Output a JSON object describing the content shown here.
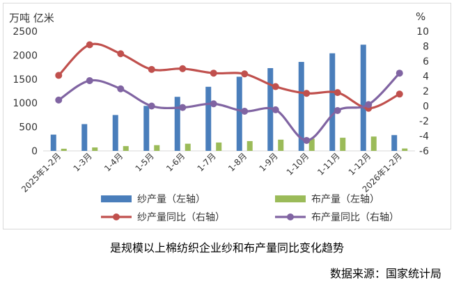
{
  "chart_data": {
    "type": "bar",
    "categories": [
      "2025年1-2月",
      "1-3月",
      "1-4月",
      "1-5月",
      "1-6月",
      "1-7月",
      "1-8月",
      "1-9月",
      "1-10月",
      "1-11月",
      "1-12月",
      "2026年1-2月"
    ],
    "left_axis": {
      "unit": "万吨 亿米",
      "ylim": [
        0,
        2500
      ],
      "ticks": [
        0,
        500,
        1000,
        1500,
        2000,
        2500
      ]
    },
    "right_axis": {
      "unit": "%",
      "ylim": [
        -6,
        10
      ],
      "ticks": [
        -6,
        -4,
        -2,
        0,
        2,
        4,
        6,
        8,
        10
      ]
    },
    "series": [
      {
        "name": "纱产量（左轴）",
        "kind": "bar",
        "axis": "left",
        "color": "#4a7ebb",
        "values": [
          340,
          560,
          750,
          940,
          1130,
          1340,
          1550,
          1730,
          1860,
          2040,
          2220,
          330
        ]
      },
      {
        "name": "布产量（左轴）",
        "kind": "bar",
        "axis": "left",
        "color": "#9bbb59",
        "values": [
          45,
          72,
          100,
          120,
          150,
          175,
          205,
          235,
          255,
          275,
          300,
          50
        ]
      },
      {
        "name": "纱产量同比（右轴）",
        "kind": "line",
        "axis": "right",
        "color": "#c0504d",
        "values": [
          4.1,
          8.2,
          7.0,
          4.9,
          5.0,
          4.4,
          4.3,
          2.6,
          1.7,
          1.8,
          -0.3,
          1.6
        ]
      },
      {
        "name": "布产量同比（右轴）",
        "kind": "line",
        "axis": "right",
        "color": "#8064a2",
        "values": [
          0.8,
          3.4,
          2.3,
          0.0,
          -0.2,
          0.3,
          -0.7,
          -0.5,
          -4.6,
          -0.6,
          0.2,
          4.4
        ]
      }
    ],
    "grid": false,
    "legend_position": "bottom"
  },
  "caption": "是规模以上棉纺织企业纱和布产量同比变化趋势",
  "source": "数据来源：国家统计局"
}
